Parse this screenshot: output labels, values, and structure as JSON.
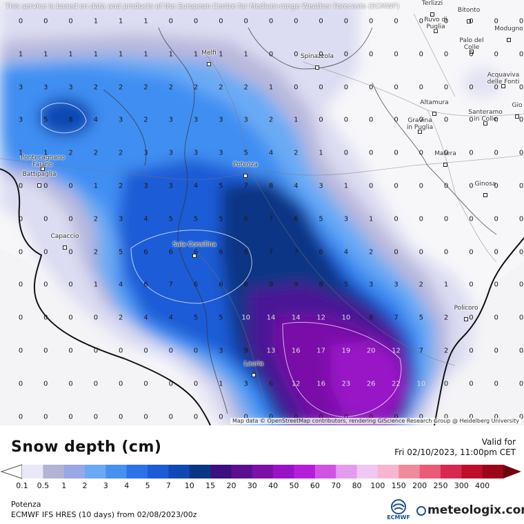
{
  "disclaimer": "This service is based on data and products of the European Centre for Medium-range Weather Forecasts (ECMWF)",
  "attribution": "Map data © OpenStreetMap contributors, rendering GIScience Research Group @ Heidelberg University",
  "title": "Snow depth (cm)",
  "valid_for_label": "Valid for",
  "valid_date": "Fri 02/10/2023, 11:00pm CET",
  "location": "Potenza",
  "model_run": "ECMWF IFS HRES (10 days) from 02/08/2023/00z",
  "brand": "meteologix.com",
  "ecmwf_logo_text": "ECMWF",
  "legend": {
    "ticks": [
      "0.1",
      "0.5",
      "1",
      "2",
      "3",
      "4",
      "5",
      "7",
      "10",
      "15",
      "20",
      "30",
      "40",
      "50",
      "60",
      "70",
      "80",
      "100",
      "150",
      "200",
      "250",
      "300",
      "400"
    ],
    "colors": [
      "#e8e8f6",
      "#b3b3d6",
      "#98a8e6",
      "#6aaaf4",
      "#4690f0",
      "#2a72e6",
      "#1c5cd6",
      "#1049b4",
      "#0b3685",
      "#3b0f80",
      "#5c108f",
      "#7e0fa8",
      "#9913c6",
      "#b51ed8",
      "#cf54e4",
      "#e29cee",
      "#f0c6f2",
      "#f7b6ce",
      "#f28a9e",
      "#eb5a76",
      "#d9274e",
      "#bd0f2a",
      "#9a0618",
      "#6c0410"
    ]
  },
  "towns": [
    {
      "name": "Melfi"
    },
    {
      "name": "Spinazzola"
    },
    {
      "name": "Ruvo di\nPuglia"
    },
    {
      "name": "Bitonto"
    },
    {
      "name": "Terlizzi"
    },
    {
      "name": "Modugno"
    },
    {
      "name": "Palo del\nColle"
    },
    {
      "name": "Acquaviva\ndelle Fonti"
    },
    {
      "name": "Altamura"
    },
    {
      "name": "Gravina\nin Puglia"
    },
    {
      "name": "Santeramo\nin Colle"
    },
    {
      "name": "Gio"
    },
    {
      "name": "Matera"
    },
    {
      "name": "Ginosa"
    },
    {
      "name": "Potenza"
    },
    {
      "name": "Pontecagnano\nFaiano"
    },
    {
      "name": "Battipaglia"
    },
    {
      "name": "Capaccio"
    },
    {
      "name": "Sala Consilina"
    },
    {
      "name": "Policoro"
    },
    {
      "name": "Lauria"
    }
  ],
  "grid": [
    [
      "0",
      "0",
      "0",
      "1",
      "1",
      "1",
      "0",
      "0",
      "0",
      "0",
      "0",
      "0",
      "0",
      "0",
      "0",
      "0",
      "0",
      "0",
      "0",
      "0",
      "0"
    ],
    [
      "1",
      "1",
      "1",
      "1",
      "1",
      "1",
      "1",
      "1",
      "1",
      "1",
      "0",
      "0",
      "0",
      "0",
      "0",
      "0",
      "0",
      "0",
      "0",
      "0",
      "0"
    ],
    [
      "3",
      "3",
      "3",
      "2",
      "2",
      "2",
      "2",
      "2",
      "2",
      "2",
      "1",
      "0",
      "0",
      "0",
      "0",
      "0",
      "0",
      "0",
      "0",
      "0",
      "0"
    ],
    [
      "3",
      "5",
      "8",
      "4",
      "3",
      "2",
      "3",
      "3",
      "3",
      "3",
      "2",
      "1",
      "0",
      "0",
      "0",
      "0",
      "0",
      "0",
      "0",
      "0",
      "0"
    ],
    [
      "1",
      "1",
      "2",
      "2",
      "2",
      "3",
      "3",
      "3",
      "3",
      "5",
      "4",
      "2",
      "1",
      "0",
      "0",
      "0",
      "0",
      "0",
      "0",
      "0",
      "0"
    ],
    [
      "0",
      "0",
      "0",
      "1",
      "2",
      "3",
      "3",
      "4",
      "5",
      "7",
      "8",
      "4",
      "3",
      "1",
      "0",
      "0",
      "0",
      "0",
      "0",
      "0",
      "0"
    ],
    [
      "0",
      "0",
      "0",
      "2",
      "3",
      "4",
      "5",
      "5",
      "5",
      "6",
      "7",
      "6",
      "5",
      "3",
      "1",
      "0",
      "0",
      "0",
      "0",
      "0",
      "0"
    ],
    [
      "0",
      "0",
      "0",
      "2",
      "5",
      "6",
      "6",
      "6",
      "6",
      "6",
      "7",
      "7",
      "6",
      "4",
      "2",
      "0",
      "0",
      "0",
      "0",
      "0",
      "0"
    ],
    [
      "0",
      "0",
      "0",
      "1",
      "4",
      "6",
      "7",
      "6",
      "6",
      "8",
      "9",
      "9",
      "8",
      "5",
      "3",
      "3",
      "2",
      "1",
      "0",
      "0",
      "0"
    ],
    [
      "0",
      "0",
      "0",
      "0",
      "2",
      "4",
      "4",
      "5",
      "5",
      "10",
      "14",
      "14",
      "12",
      "10",
      "8",
      "7",
      "5",
      "2",
      "0",
      "0",
      "0"
    ],
    [
      "0",
      "0",
      "0",
      "0",
      "0",
      "0",
      "0",
      "0",
      "3",
      "9",
      "13",
      "16",
      "17",
      "19",
      "20",
      "12",
      "7",
      "2",
      "0",
      "0",
      "0"
    ],
    [
      "0",
      "0",
      "0",
      "0",
      "0",
      "0",
      "0",
      "0",
      "1",
      "3",
      "6",
      "12",
      "16",
      "23",
      "26",
      "22",
      "10",
      "0",
      "0",
      "0",
      "0"
    ],
    [
      "0",
      "0",
      "0",
      "0",
      "0",
      "0",
      "0",
      "0",
      "0",
      "0",
      "0",
      "0",
      "0",
      "0",
      "0",
      "0",
      "0",
      "0",
      "0",
      "0",
      "0"
    ]
  ]
}
